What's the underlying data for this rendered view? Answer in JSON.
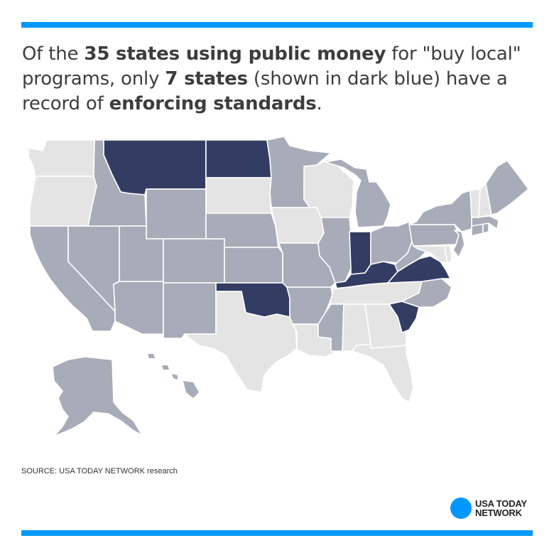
{
  "colors": {
    "accent": "#0098fe",
    "enforcing": "#333d63",
    "public_money": "#a8acb8",
    "other": "#e4e4e4"
  },
  "headline": {
    "p1": "Of the ",
    "b1": "35 states using public money",
    "p2": " for \"buy local\" programs, only ",
    "b2": "7 states",
    "p3": " (shown in dark blue) have a record of ",
    "b3": "enforcing standards",
    "p4": "."
  },
  "map": {
    "states": [
      {
        "id": "WA",
        "status": "other"
      },
      {
        "id": "OR",
        "status": "other"
      },
      {
        "id": "CA",
        "status": "public_money"
      },
      {
        "id": "NV",
        "status": "public_money"
      },
      {
        "id": "ID",
        "status": "public_money"
      },
      {
        "id": "MT",
        "status": "enforcing"
      },
      {
        "id": "WY",
        "status": "public_money"
      },
      {
        "id": "UT",
        "status": "public_money"
      },
      {
        "id": "AZ",
        "status": "public_money"
      },
      {
        "id": "CO",
        "status": "public_money"
      },
      {
        "id": "NM",
        "status": "public_money"
      },
      {
        "id": "ND",
        "status": "enforcing"
      },
      {
        "id": "SD",
        "status": "other"
      },
      {
        "id": "NE",
        "status": "public_money"
      },
      {
        "id": "KS",
        "status": "public_money"
      },
      {
        "id": "OK",
        "status": "enforcing"
      },
      {
        "id": "TX",
        "status": "other"
      },
      {
        "id": "MN",
        "status": "public_money"
      },
      {
        "id": "IA",
        "status": "other"
      },
      {
        "id": "MO",
        "status": "public_money"
      },
      {
        "id": "AR",
        "status": "public_money"
      },
      {
        "id": "LA",
        "status": "other"
      },
      {
        "id": "WI",
        "status": "other"
      },
      {
        "id": "IL",
        "status": "public_money"
      },
      {
        "id": "MI",
        "status": "public_money"
      },
      {
        "id": "IN",
        "status": "enforcing"
      },
      {
        "id": "OH",
        "status": "public_money"
      },
      {
        "id": "KY",
        "status": "enforcing"
      },
      {
        "id": "TN",
        "status": "other"
      },
      {
        "id": "MS",
        "status": "public_money"
      },
      {
        "id": "AL",
        "status": "other"
      },
      {
        "id": "GA",
        "status": "other"
      },
      {
        "id": "FL",
        "status": "other"
      },
      {
        "id": "SC",
        "status": "enforcing"
      },
      {
        "id": "NC",
        "status": "public_money"
      },
      {
        "id": "VA",
        "status": "enforcing"
      },
      {
        "id": "WV",
        "status": "public_money"
      },
      {
        "id": "PA",
        "status": "public_money"
      },
      {
        "id": "NY",
        "status": "public_money"
      },
      {
        "id": "NJ",
        "status": "public_money"
      },
      {
        "id": "DE",
        "status": "other"
      },
      {
        "id": "MD",
        "status": "other"
      },
      {
        "id": "CT",
        "status": "public_money"
      },
      {
        "id": "RI",
        "status": "public_money"
      },
      {
        "id": "MA",
        "status": "public_money"
      },
      {
        "id": "VT",
        "status": "other"
      },
      {
        "id": "NH",
        "status": "other"
      },
      {
        "id": "ME",
        "status": "public_money"
      },
      {
        "id": "AK",
        "status": "public_money"
      },
      {
        "id": "HI",
        "status": "public_money"
      }
    ]
  },
  "source": "SOURCE: USA TODAY NETWORK research",
  "logo": {
    "line1": "USA TODAY",
    "line2": "NETWORK"
  }
}
